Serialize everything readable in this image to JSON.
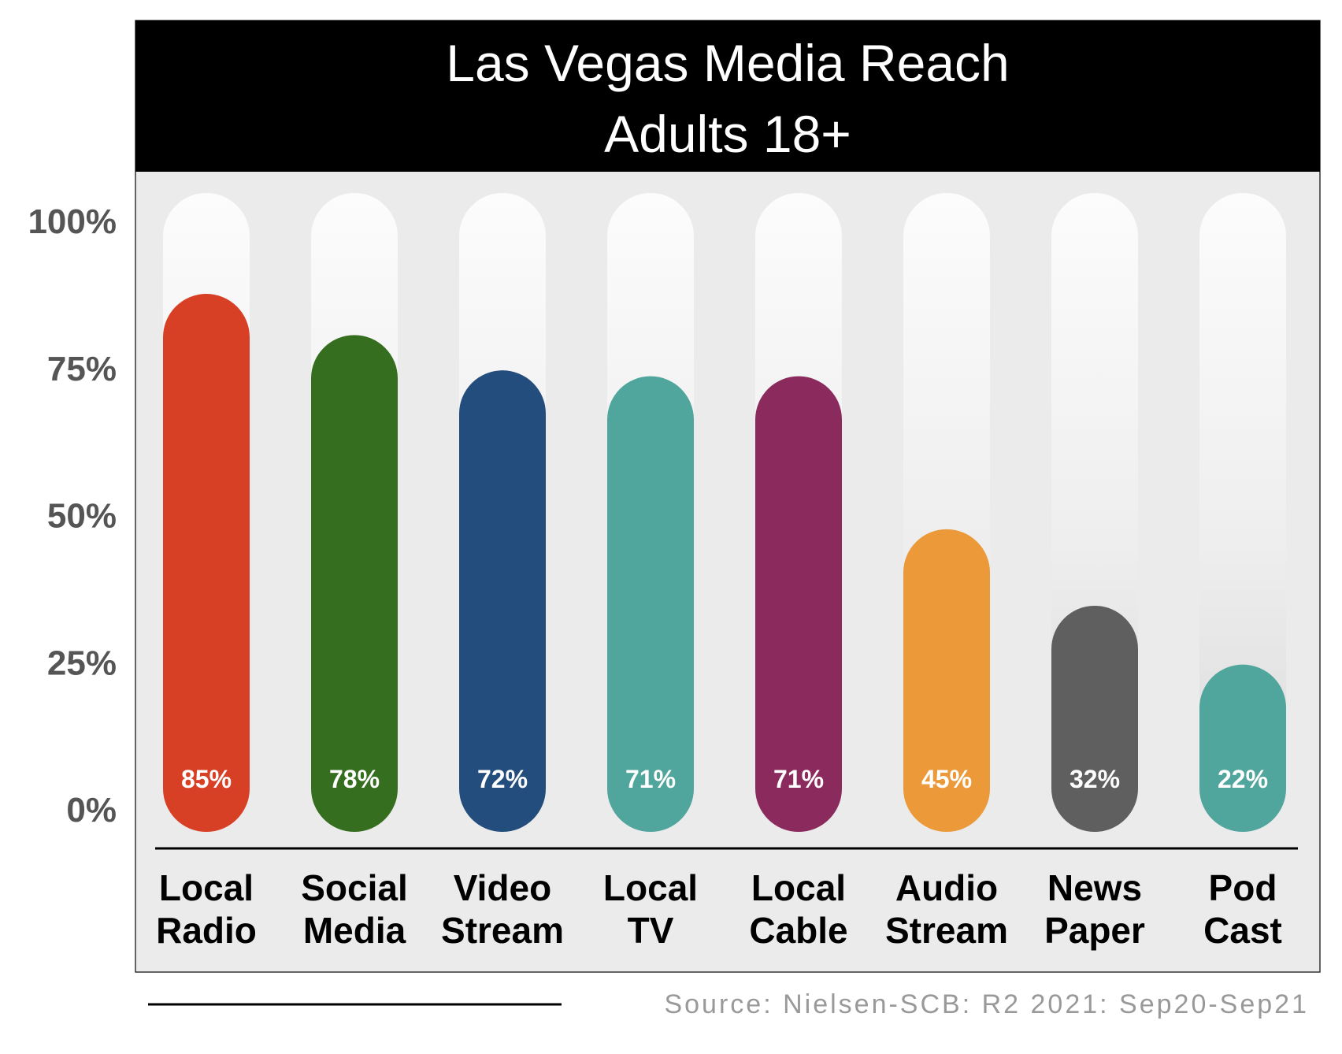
{
  "chart_data": {
    "type": "bar",
    "title": "Las Vegas Media Reach",
    "subtitle": "Adults 18+",
    "categories": [
      [
        "Local",
        "Radio"
      ],
      [
        "Social",
        "Media"
      ],
      [
        "Video",
        "Stream"
      ],
      [
        "Local",
        "TV"
      ],
      [
        "Local",
        "Cable"
      ],
      [
        "Audio",
        "Stream"
      ],
      [
        "News",
        "Paper"
      ],
      [
        "Pod",
        "Cast"
      ]
    ],
    "values": [
      85,
      78,
      72,
      71,
      71,
      45,
      32,
      22
    ],
    "value_labels": [
      "85%",
      "78%",
      "72%",
      "71%",
      "71%",
      "45%",
      "32%",
      "22%"
    ],
    "colors": [
      "#d84026",
      "#366e1f",
      "#234d7c",
      "#50a59c",
      "#8b2a5c",
      "#ec9a39",
      "#5f5f5f",
      "#50a59c"
    ],
    "ylim": [
      0,
      100
    ],
    "yticks": [
      0,
      25,
      50,
      75,
      100
    ],
    "ytick_labels": [
      "0%",
      "25%",
      "50%",
      "75%",
      "100%"
    ],
    "xlabel": "",
    "ylabel": "",
    "grid": false,
    "legend": "none"
  },
  "source": "Source: Nielsen-SCB: R2 2021: Sep20-Sep21",
  "colors": {
    "title_bg": "#000000",
    "title_text": "#ffffff",
    "plot_bg": "#ebebeb",
    "axis_text": "#555555",
    "source_text": "#999999"
  }
}
